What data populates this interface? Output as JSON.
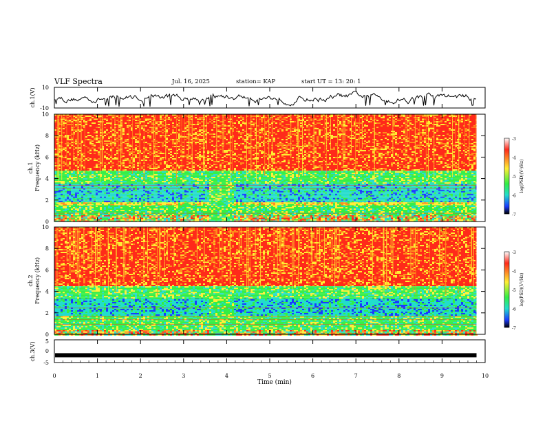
{
  "header": {
    "title": "VLF Spectra",
    "date": "Jul. 16, 2025",
    "station": "station= KAP",
    "start": "start UT =  13: 20: 1"
  },
  "chart_data": [
    {
      "type": "line",
      "id": "ch1",
      "ylabel": "ch.1(V)",
      "ylim": [
        -10,
        10
      ],
      "y_ticks": [
        "10",
        "-10"
      ],
      "xlim": [
        0,
        10
      ],
      "note": "noisy voltage trace, roughly between -8 and 6 V, ending near 9.8 min",
      "x_end": 9.8,
      "envelope": [
        -4,
        4
      ]
    },
    {
      "type": "heatmap",
      "id": "ch1-spec",
      "ylabel": "Frequency (kHz)",
      "chlabel": "ch.1",
      "ylim": [
        0,
        10
      ],
      "y_ticks": [
        "0",
        "2",
        "4",
        "6",
        "8",
        "10"
      ],
      "xlim": [
        0,
        10
      ],
      "x_end": 9.8,
      "bands": [
        {
          "from": 0,
          "to": 0.6,
          "level": "mixed"
        },
        {
          "from": 0.6,
          "to": 1.6,
          "level": "green"
        },
        {
          "from": 1.6,
          "to": 1.9,
          "level": "yellow"
        },
        {
          "from": 1.9,
          "to": 3.6,
          "level": "cyan"
        },
        {
          "from": 3.6,
          "to": 4.8,
          "level": "green"
        },
        {
          "from": 4.8,
          "to": 10,
          "level": "red"
        }
      ],
      "gap": {
        "from": 3.55,
        "to": 4.15
      }
    },
    {
      "type": "heatmap",
      "id": "ch2-spec",
      "ylabel": "Frequency (kHz)",
      "chlabel": "ch.2",
      "ylim": [
        0,
        10
      ],
      "y_ticks": [
        "0",
        "2",
        "4",
        "6",
        "8",
        "10"
      ],
      "xlim": [
        0,
        10
      ],
      "x_end": 9.8,
      "bands": [
        {
          "from": 0,
          "to": 0.4,
          "level": "mixed"
        },
        {
          "from": 0.4,
          "to": 1.8,
          "level": "green"
        },
        {
          "from": 1.8,
          "to": 3.4,
          "level": "cyan"
        },
        {
          "from": 3.4,
          "to": 4.6,
          "level": "green"
        },
        {
          "from": 4.6,
          "to": 10,
          "level": "red"
        }
      ],
      "gap": {
        "from": 3.55,
        "to": 4.15
      }
    },
    {
      "type": "line",
      "id": "ch3",
      "ylabel": "ch.3(V)",
      "ylim": [
        -5,
        5
      ],
      "y_ticks": [
        "5",
        "0",
        "-5"
      ],
      "xlim": [
        0,
        10
      ],
      "x_end": 9.8,
      "level": -1.8
    }
  ],
  "x_axis": {
    "label": "Time (min)",
    "ticks": [
      "0",
      "1",
      "2",
      "3",
      "4",
      "5",
      "6",
      "7",
      "8",
      "9",
      "10"
    ]
  },
  "colorbar": {
    "label": "log(PSD)(V²/Hz)",
    "ticks": [
      "-3",
      "-4",
      "-5",
      "-6",
      "-7"
    ],
    "range": [
      -7,
      -3
    ]
  },
  "colors": {
    "red": "#ff2a1a",
    "orange": "#ff8c1a",
    "yellow": "#ffee33",
    "green": "#33ee44",
    "cyan": "#22ddcc",
    "blue": "#1a3aff",
    "black": "#000000"
  }
}
